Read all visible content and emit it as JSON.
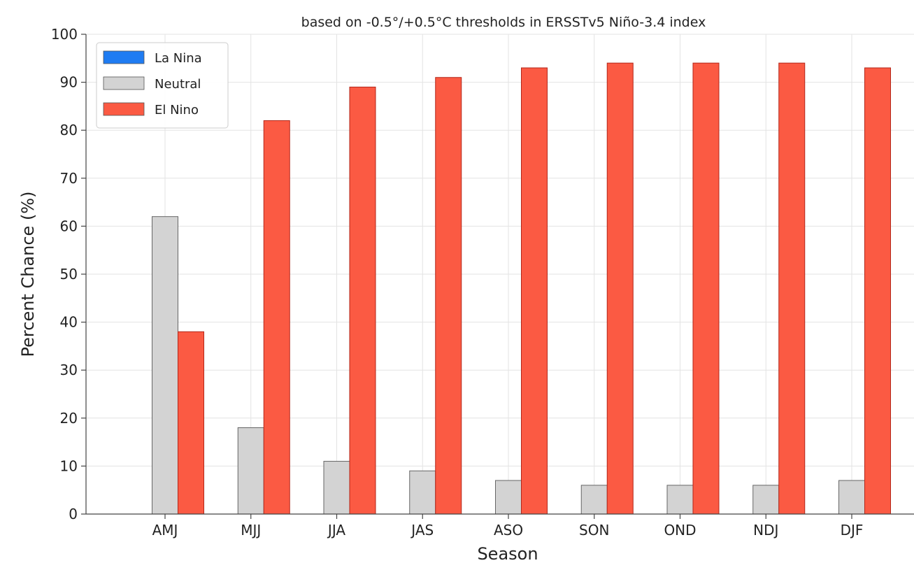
{
  "chart_data": {
    "type": "bar",
    "title": "",
    "subtitle": "based on -0.5°/+0.5°C thresholds in ERSSTv5 Niño-3.4 index",
    "xlabel": "Season",
    "ylabel": "Percent Chance (%)",
    "ylim": [
      0,
      100
    ],
    "yticks": [
      0,
      10,
      20,
      30,
      40,
      50,
      60,
      70,
      80,
      90,
      100
    ],
    "grid": true,
    "legend_position": "top-left",
    "categories": [
      "AMJ",
      "MJJ",
      "JJA",
      "JAS",
      "ASO",
      "SON",
      "OND",
      "NDJ",
      "DJF"
    ],
    "series": [
      {
        "name": "La Nina",
        "color": "#1f7cf2",
        "values": [
          0,
          0,
          0,
          0,
          0,
          0,
          0,
          0,
          0
        ]
      },
      {
        "name": "Neutral",
        "color": "#d3d3d3",
        "values": [
          62,
          18,
          11,
          9,
          7,
          6,
          6,
          6,
          7
        ]
      },
      {
        "name": "El Nino",
        "color": "#fb5a43",
        "values": [
          38,
          82,
          89,
          91,
          93,
          94,
          94,
          94,
          93
        ]
      }
    ]
  }
}
